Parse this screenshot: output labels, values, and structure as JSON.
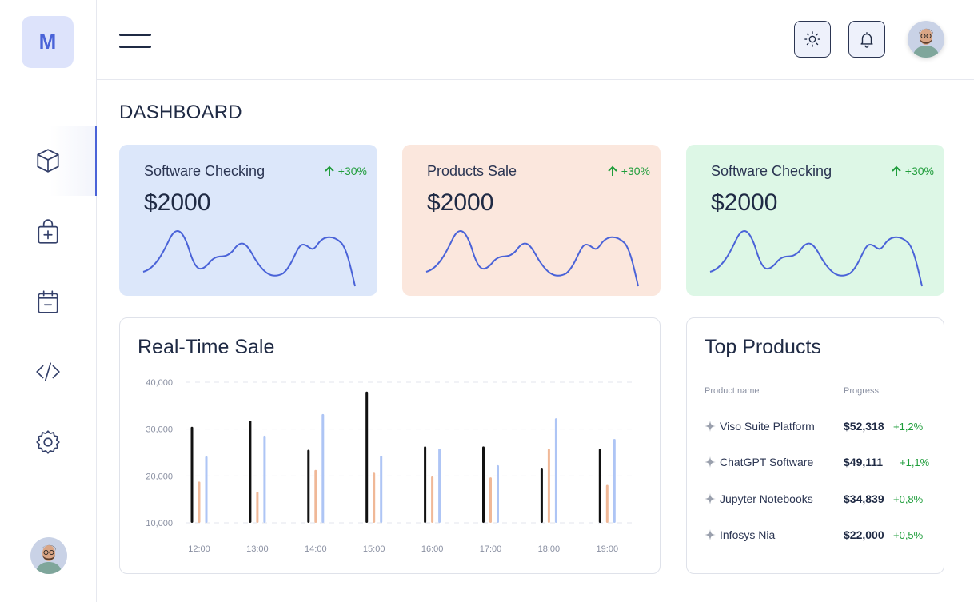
{
  "logo": {
    "letter": "M"
  },
  "header": {
    "theme_icon": "sun-icon",
    "notify_icon": "bell-icon"
  },
  "page_title": "DASHBOARD",
  "sidebar": {
    "items": [
      {
        "name": "box-icon"
      },
      {
        "name": "shopping-bag-plus-icon"
      },
      {
        "name": "calendar-minus-icon"
      },
      {
        "name": "code-icon"
      },
      {
        "name": "settings-icon"
      }
    ],
    "active_index": 0
  },
  "cards": [
    {
      "label": "Software Checking",
      "delta": "+30%",
      "value": "$2000",
      "bg": "#dce7fa"
    },
    {
      "label": "Products Sale",
      "delta": "+30%",
      "value": "$2000",
      "bg": "#fbe7dd"
    },
    {
      "label": "Software Checking",
      "delta": "+30%",
      "value": "$2000",
      "bg": "#ddf7e6"
    }
  ],
  "realtime": {
    "title": "Real-Time Sale"
  },
  "chart_data": {
    "type": "bar",
    "categories": [
      "12:00",
      "13:00",
      "14:00",
      "15:00",
      "16:00",
      "17:00",
      "18:00",
      "19:00"
    ],
    "series": [
      {
        "values": [
          30500,
          31800,
          25600,
          38000,
          26300,
          26300,
          21600,
          25800
        ],
        "color": "#111111"
      },
      {
        "values": [
          18800,
          16600,
          21300,
          20700,
          19900,
          19700,
          25800,
          18100
        ],
        "color": "#f0b897"
      },
      {
        "values": [
          24200,
          28600,
          33200,
          24300,
          25800,
          22300,
          32300,
          27900
        ],
        "color": "#aec5f5"
      }
    ],
    "ylim": [
      10000,
      40000
    ],
    "yticks": [
      "40,000",
      "30,000",
      "20,000",
      "10,000"
    ],
    "grid": true
  },
  "top_products": {
    "title": "Top Products",
    "col_name": "Product name",
    "col_progress": "Progress",
    "rows": [
      {
        "name": "Viso Suite Platform",
        "price": "$52,318",
        "pct": "+1,2%"
      },
      {
        "name": "ChatGPT Software",
        "price": "$49,111",
        "pct": "+1,1%"
      },
      {
        "name": "Jupyter Notebooks",
        "price": "$34,839",
        "pct": "+0,8%"
      },
      {
        "name": "Infosys Nia",
        "price": "$22,000",
        "pct": "+0,5%"
      }
    ]
  }
}
